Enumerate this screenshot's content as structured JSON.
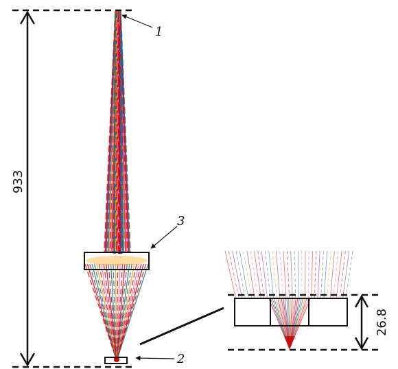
{
  "diagram": {
    "height_label": "933",
    "detail_height_label": "26.8",
    "callouts": [
      {
        "id": "1",
        "label": "1"
      },
      {
        "id": "2",
        "label": "2"
      },
      {
        "id": "3",
        "label": "3"
      }
    ],
    "ray_colors": [
      "#ff0000",
      "#cc0000",
      "#7a1fa2",
      "#2e7d32",
      "#1565c0",
      "#ff9800",
      "#b71c1c",
      "#ff66aa"
    ]
  }
}
